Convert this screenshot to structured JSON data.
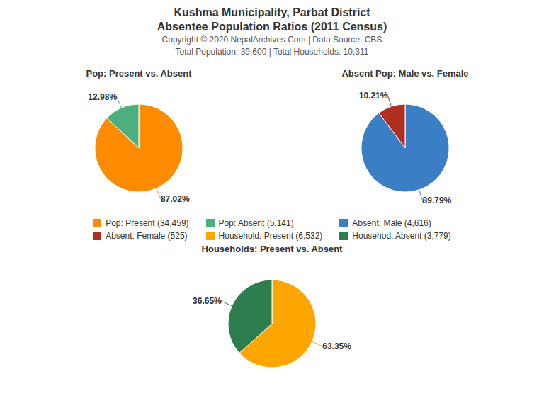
{
  "title": "Kushma Municipality, Parbat District",
  "subtitle": "Absentee Population Ratios (2011 Census)",
  "annotations": [
    "Copyright © 2020 NepalArchives.Com | Data Source: CBS",
    "Total Population: 39,600 | Total Households: 10,311"
  ],
  "chart_data": [
    {
      "type": "pie",
      "title": "Pop: Present vs. Absent",
      "categories": [
        "Pop: Present (34,459)",
        "Pop: Absent (5,141)"
      ],
      "values": [
        87.02,
        12.98
      ],
      "value_labels": [
        "87.02%",
        "12.98%"
      ],
      "colors": [
        "#FF8C00",
        "#4CAF7D"
      ],
      "data_labels": true
    },
    {
      "type": "pie",
      "title": "Absent Pop: Male vs. Female",
      "categories": [
        "Absent: Male (4,616)",
        "Absent: Female (525)"
      ],
      "values": [
        89.79,
        10.21
      ],
      "value_labels": [
        "89.79%",
        "10.21%"
      ],
      "colors": [
        "#3A7EC6",
        "#B03020"
      ],
      "data_labels": true
    },
    {
      "type": "pie",
      "title": "Households: Present vs. Absent",
      "categories": [
        "Household: Present (6,532)",
        "Househod: Absent (3,779)"
      ],
      "values": [
        63.35,
        36.65
      ],
      "value_labels": [
        "63.35%",
        "36.65%"
      ],
      "colors": [
        "#FFA500",
        "#2E7D4F"
      ],
      "data_labels": true
    }
  ]
}
